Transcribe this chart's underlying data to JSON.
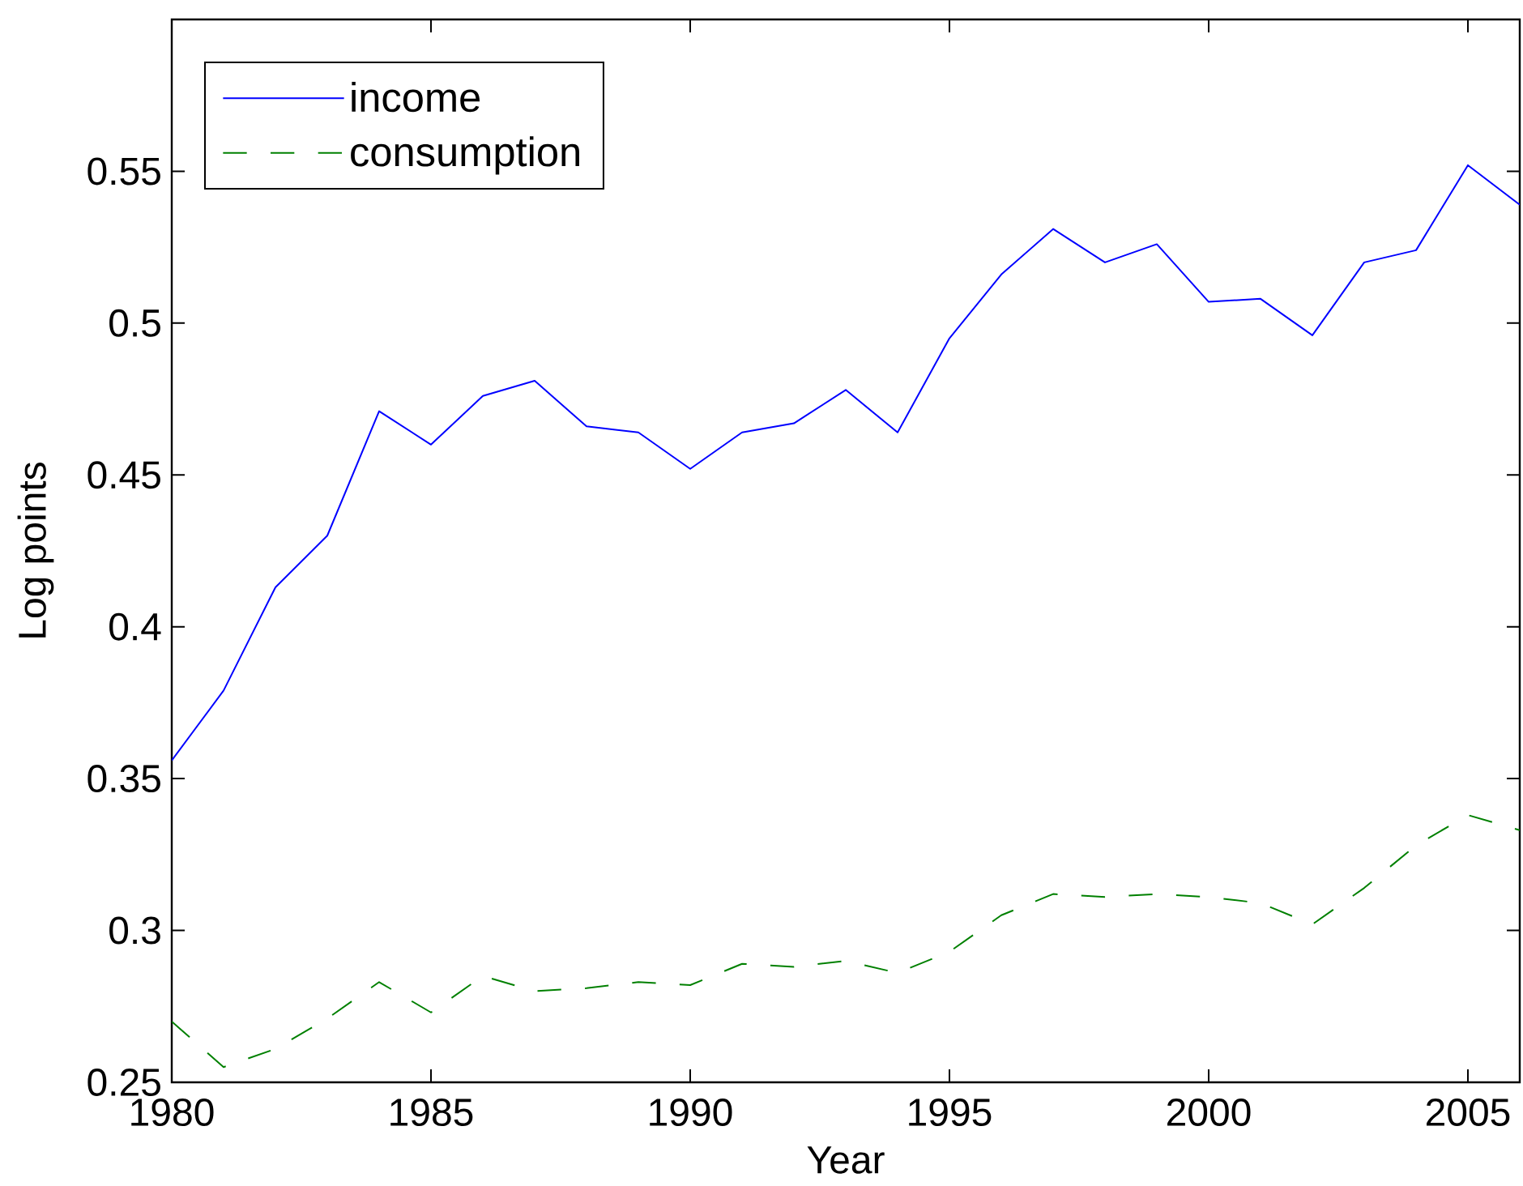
{
  "chart_data": {
    "type": "line",
    "xlabel": "Year",
    "ylabel": "Log points",
    "x": [
      1980,
      1981,
      1982,
      1983,
      1984,
      1985,
      1986,
      1987,
      1988,
      1989,
      1990,
      1991,
      1992,
      1993,
      1994,
      1995,
      1996,
      1997,
      1998,
      1999,
      2000,
      2001,
      2002,
      2003,
      2004,
      2005,
      2006
    ],
    "series": [
      {
        "name": "income",
        "color": "#0000ff",
        "line_style": "solid",
        "values": [
          0.356,
          0.379,
          0.413,
          0.43,
          0.471,
          0.46,
          0.476,
          0.481,
          0.466,
          0.464,
          0.452,
          0.464,
          0.467,
          0.478,
          0.464,
          0.495,
          0.516,
          0.531,
          0.52,
          0.526,
          0.507,
          0.508,
          0.496,
          0.52,
          0.524,
          0.552,
          0.539
        ]
      },
      {
        "name": "consumption",
        "color": "#008000",
        "line_style": "dashed",
        "values": [
          0.27,
          0.255,
          0.261,
          0.271,
          0.283,
          0.273,
          0.285,
          0.28,
          0.281,
          0.283,
          0.282,
          0.289,
          0.288,
          0.29,
          0.286,
          0.293,
          0.305,
          0.312,
          0.311,
          0.312,
          0.311,
          0.309,
          0.302,
          0.314,
          0.328,
          0.338,
          0.333
        ]
      }
    ],
    "xlim": [
      1980,
      2006
    ],
    "ylim": [
      0.25,
      0.6
    ],
    "xticks": [
      1980,
      1985,
      1990,
      1995,
      2000,
      2005
    ],
    "yticks": [
      0.25,
      0.3,
      0.35,
      0.4,
      0.45,
      0.5,
      0.55
    ],
    "legend": "top left"
  }
}
